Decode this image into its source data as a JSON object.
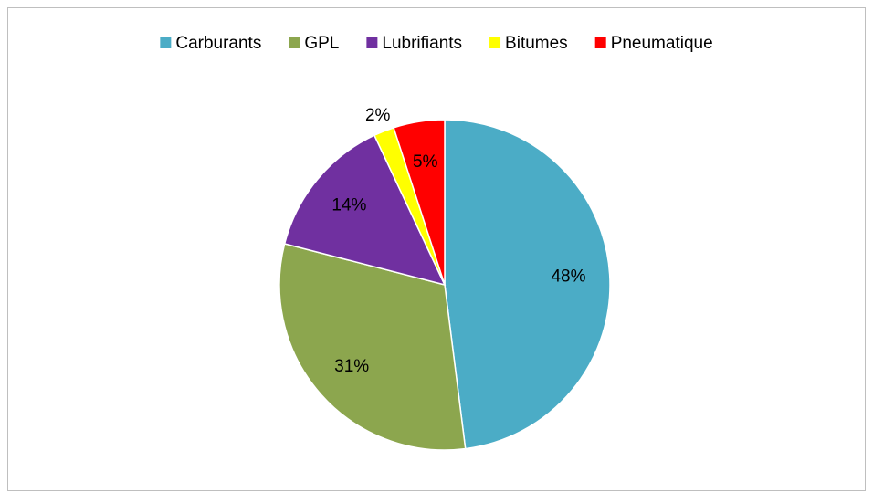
{
  "chart_data": {
    "type": "pie",
    "categories": [
      "Carburants",
      "GPL",
      "Lubrifiants",
      "Bitumes",
      "Pneumatique"
    ],
    "values": [
      48,
      31,
      14,
      2,
      5
    ],
    "value_labels": [
      "48%",
      "31%",
      "14%",
      "2%",
      "5%"
    ],
    "colors": [
      "#4bacc6",
      "#8ca64e",
      "#7030a0",
      "#ffff00",
      "#ff0000"
    ],
    "legend": "top"
  }
}
